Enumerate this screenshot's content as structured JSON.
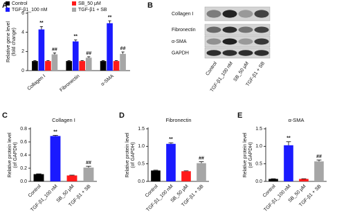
{
  "chart_data": [
    {
      "type": "grouped-bar",
      "panel": "A",
      "ylabel": [
        "Relative gene level",
        "(fold change)"
      ],
      "categories": [
        "Collagen I",
        "Fibronectin",
        "α-SMA"
      ],
      "series": [
        {
          "name": "Control",
          "color": "#000000",
          "values": [
            1,
            1,
            1
          ],
          "errors": [
            0.05,
            0.05,
            0.05
          ]
        },
        {
          "name": "TGF-β1_100 nM",
          "color": "#1a1aff",
          "values": [
            4.3,
            3.05,
            4.95
          ],
          "errors": [
            0.3,
            0.15,
            0.25
          ],
          "significance": [
            "**",
            "**",
            "**"
          ]
        },
        {
          "name": "SB_50 μM",
          "color": "#ff1a1a",
          "values": [
            1,
            1,
            1
          ],
          "errors": [
            0.05,
            0.05,
            0.05
          ]
        },
        {
          "name": "TGF-β1 + SB",
          "color": "#a6a6a6",
          "values": [
            1.7,
            1.35,
            1.75
          ],
          "errors": [
            0.15,
            0.1,
            0.2
          ],
          "significance": [
            "##",
            "##",
            "##"
          ]
        }
      ],
      "ylim": [
        0,
        6
      ],
      "yticks": [
        0,
        2,
        4,
        6
      ]
    },
    {
      "type": "bar",
      "panel": "C",
      "title": "Collagen I",
      "ylabel": [
        "Relative protein level",
        "(of GAPDH)"
      ],
      "categories": [
        "Control",
        "TGF-β1_100 nM",
        "SB_50 μM",
        "TGF-β1 + SB"
      ],
      "colors": [
        "#000000",
        "#1a1aff",
        "#ff1a1a",
        "#a6a6a6"
      ],
      "values": [
        0.11,
        0.69,
        0.09,
        0.21
      ],
      "errors": [
        0.005,
        0.01,
        0.005,
        0.02
      ],
      "significance": [
        null,
        "**",
        null,
        "##"
      ],
      "ylim": [
        0,
        0.8
      ],
      "yticks": [
        {
          "value": 0,
          "label": "0.0"
        },
        0.2,
        0.4,
        0.6,
        0.8
      ]
    },
    {
      "type": "bar",
      "panel": "D",
      "title": "Fibronectin",
      "ylabel": [
        "Relative protein level",
        "(of GAPDH)"
      ],
      "categories": [
        "Control",
        "TGF-β1_100 nM",
        "SB_50 μM",
        "TGF-β1 + SB"
      ],
      "colors": [
        "#000000",
        "#1a1aff",
        "#ff1a1a",
        "#a6a6a6"
      ],
      "values": [
        0.31,
        1.07,
        0.29,
        0.52
      ],
      "errors": [
        0.01,
        0.03,
        0.01,
        0.04
      ],
      "significance": [
        null,
        "**",
        null,
        "##"
      ],
      "ylim": [
        0,
        1.5
      ],
      "yticks": [
        {
          "value": 0,
          "label": "0.0"
        },
        0.5,
        {
          "value": 1,
          "label": "1.0"
        },
        1.5
      ]
    },
    {
      "type": "bar",
      "panel": "E",
      "title": "α-SMA",
      "ylabel": [
        "Relative protein level",
        "(of GAPDH)"
      ],
      "categories": [
        "Control",
        "TGF-β1_100 nM",
        "SB_50 μM",
        "TGF-β1 + SB"
      ],
      "colors": [
        "#000000",
        "#1a1aff",
        "#ff1a1a",
        "#a6a6a6"
      ],
      "values": [
        0.07,
        1.03,
        0.07,
        0.57
      ],
      "errors": [
        0.005,
        0.1,
        0.005,
        0.04
      ],
      "significance": [
        null,
        "**",
        null,
        "##"
      ],
      "ylim": [
        0,
        1.5
      ],
      "yticks": [
        {
          "value": 0,
          "label": "0.0"
        },
        0.5,
        {
          "value": 1,
          "label": "1.0"
        },
        1.5
      ]
    }
  ],
  "blot": {
    "panel": "B",
    "rows": [
      "Collagen I",
      "Fibronectin",
      "α-SMA",
      "GAPDH"
    ],
    "lanes": [
      "Control",
      "TGF-β1_100 nM",
      "SB_50 μM",
      "TGF-β1 + SB"
    ]
  }
}
